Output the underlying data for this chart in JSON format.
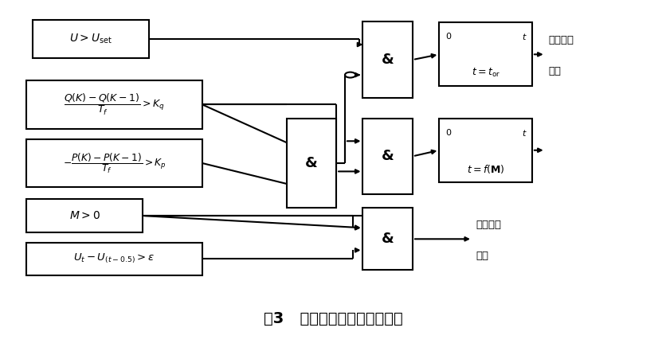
{
  "fig_width": 8.36,
  "fig_height": 4.36,
  "dpi": 100,
  "bg": "#ffffff",
  "title": "图3   交流过电压保护逻辑简图",
  "title_fs": 14,
  "lw": 1.5,
  "b1": [
    0.048,
    0.055,
    0.175,
    0.11
  ],
  "b2": [
    0.038,
    0.23,
    0.265,
    0.14
  ],
  "b3": [
    0.038,
    0.4,
    0.265,
    0.14
  ],
  "b4": [
    0.038,
    0.575,
    0.175,
    0.095
  ],
  "b5": [
    0.038,
    0.7,
    0.265,
    0.095
  ],
  "mg": [
    0.43,
    0.34,
    0.075,
    0.26
  ],
  "ag1": [
    0.545,
    0.06,
    0.075,
    0.22
  ],
  "ag2": [
    0.545,
    0.34,
    0.075,
    0.22
  ],
  "ag3": [
    0.545,
    0.6,
    0.075,
    0.18
  ],
  "t1": [
    0.66,
    0.062,
    0.14,
    0.185
  ],
  "t2": [
    0.66,
    0.34,
    0.14,
    0.185
  ],
  "label1_right": [
    0.812,
    0.105,
    "交流保护\n跳闸"
  ],
  "label2_right": [
    0.812,
    0.43,
    ""
  ],
  "label3_right": [
    0.66,
    0.645,
    "交流保护\n跳闸"
  ]
}
